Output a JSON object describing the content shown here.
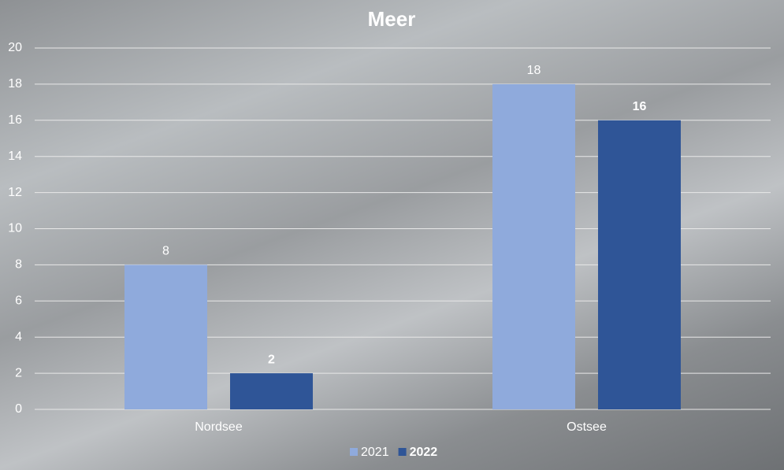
{
  "chart_data": {
    "type": "bar",
    "title": "Meer",
    "categories": [
      "Nordsee",
      "Ostsee"
    ],
    "series": [
      {
        "name": "2021",
        "color": "#8faadc",
        "values": [
          8,
          18
        ]
      },
      {
        "name": "2022",
        "color": "#2f5597",
        "values": [
          2,
          16
        ]
      }
    ],
    "ylim": [
      0,
      20
    ],
    "yticks": [
      0,
      2,
      4,
      6,
      8,
      10,
      12,
      14,
      16,
      18,
      20
    ],
    "grid": true,
    "legend": "bottom"
  }
}
